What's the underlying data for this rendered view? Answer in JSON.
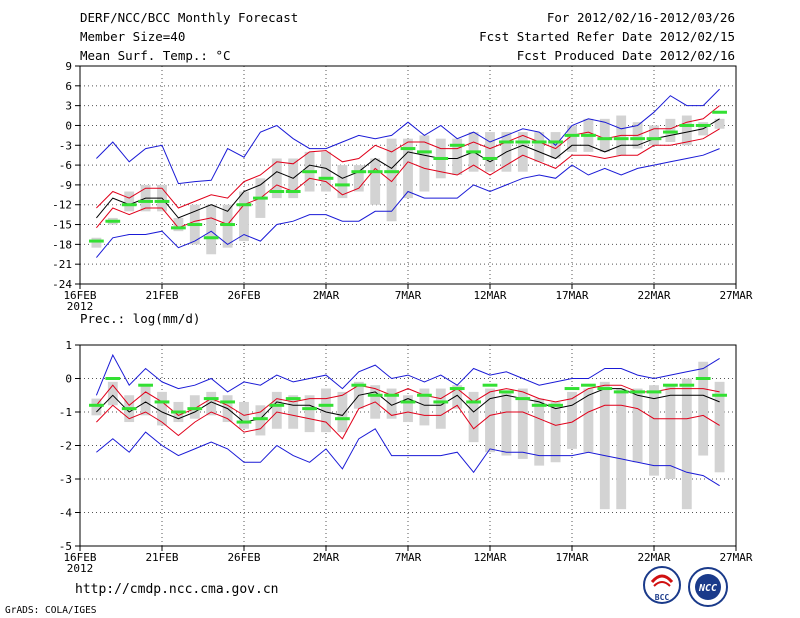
{
  "header": {
    "title": "DERF/NCC/BCC Monthly Forecast",
    "member_size": "Member Size=40",
    "variable": "Mean Surf. Temp.: °C",
    "period": "For 2012/02/16-2012/03/26",
    "refer_date": "Fcst Started Refer Date 2012/02/15",
    "produced_date": "Fcst Produced Date 2012/02/16"
  },
  "footer": {
    "url": "http://cmdp.ncc.cma.gov.cn",
    "grads": "GrADS: COLA/IGES",
    "logo_bcc": "BCC",
    "logo_ncc": "NCC"
  },
  "colors": {
    "box": "#d3d3d3",
    "mean": "#000000",
    "spread": "#e0001a",
    "extreme": "#1a1ad6",
    "median": "#33e033",
    "grid": "#555555"
  },
  "chart_data": [
    {
      "type": "line",
      "id": "temperature",
      "title": "Mean Surf. Temp.: °C",
      "ylabel": "°C",
      "ylim": [
        -24,
        9
      ],
      "yticks": [
        -24,
        -21,
        -18,
        -15,
        -12,
        -9,
        -6,
        -3,
        0,
        3,
        6,
        9
      ],
      "day_range": [
        0,
        40
      ],
      "xticks": [
        {
          "day": 0,
          "label": "16FEB",
          "sub": "2012"
        },
        {
          "day": 5,
          "label": "21FEB"
        },
        {
          "day": 10,
          "label": "26FEB"
        },
        {
          "day": 15,
          "label": "2MAR"
        },
        {
          "day": 20,
          "label": "7MAR"
        },
        {
          "day": 25,
          "label": "12MAR"
        },
        {
          "day": 30,
          "label": "17MAR"
        },
        {
          "day": 35,
          "label": "22MAR"
        },
        {
          "day": 40,
          "label": "27MAR"
        }
      ],
      "days": [
        1,
        2,
        3,
        4,
        5,
        6,
        7,
        8,
        9,
        10,
        11,
        12,
        13,
        14,
        15,
        16,
        17,
        18,
        19,
        20,
        21,
        22,
        23,
        24,
        25,
        26,
        27,
        28,
        29,
        30,
        31,
        32,
        33,
        34,
        35,
        36,
        37,
        38,
        39
      ],
      "series": [
        {
          "name": "max",
          "values": [
            -5,
            -2.5,
            -5.5,
            -3.5,
            -3,
            -8.8,
            -8.5,
            -8.3,
            -3.5,
            -4.8,
            -1,
            0,
            -2,
            -3.5,
            -3.5,
            -2.5,
            -1.5,
            -2,
            -1.5,
            0.5,
            -1.5,
            0,
            -2,
            -1,
            -2.5,
            -1.5,
            -0.5,
            -1,
            -3,
            0,
            1,
            0.5,
            -0.5,
            0,
            2,
            4.5,
            3,
            3,
            5.5
          ]
        },
        {
          "name": "upper",
          "values": [
            -12.5,
            -10,
            -11,
            -9.5,
            -9.5,
            -12.5,
            -11.5,
            -10.5,
            -11,
            -8.5,
            -7.5,
            -5.5,
            -5.8,
            -4,
            -3.8,
            -5.5,
            -5,
            -3,
            -4,
            -2.5,
            -2.5,
            -3.5,
            -3.5,
            -2.5,
            -3.5,
            -2.5,
            -1.5,
            -2.5,
            -3.5,
            -1.5,
            -1,
            -2,
            -1.5,
            -1.5,
            -0.5,
            -0.5,
            0.5,
            1,
            3
          ]
        },
        {
          "name": "mean",
          "values": [
            -14,
            -11,
            -12,
            -11,
            -11,
            -14,
            -13,
            -12,
            -13,
            -10,
            -9,
            -7,
            -8,
            -6,
            -6.5,
            -8,
            -7,
            -5,
            -6.5,
            -4,
            -4.5,
            -5,
            -5,
            -4,
            -5.5,
            -4,
            -3,
            -4,
            -5,
            -3,
            -3,
            -4,
            -3,
            -3,
            -2,
            -1.5,
            -1,
            -0.5,
            1
          ]
        },
        {
          "name": "lower",
          "values": [
            -15.5,
            -12.5,
            -13.5,
            -12.5,
            -12.5,
            -15.5,
            -14.5,
            -14,
            -15,
            -12,
            -11,
            -9,
            -10,
            -8,
            -8.5,
            -10.5,
            -9.5,
            -6.5,
            -8.5,
            -5.5,
            -6.5,
            -7,
            -7.5,
            -6,
            -7.5,
            -6,
            -4.5,
            -5.5,
            -6.5,
            -4.5,
            -4.5,
            -5,
            -4.5,
            -4.5,
            -3,
            -3,
            -2.5,
            -2,
            -0.5
          ]
        },
        {
          "name": "min",
          "values": [
            -20,
            -17,
            -16.5,
            -16.5,
            -16,
            -18.5,
            -17.5,
            -16,
            -18,
            -16.5,
            -17.5,
            -15,
            -14.5,
            -13.5,
            -13.5,
            -14.5,
            -14.5,
            -13,
            -13,
            -10,
            -11,
            -11,
            -11,
            -9,
            -10,
            -9,
            -8,
            -7.5,
            -8,
            -6,
            -7.5,
            -6.5,
            -7.5,
            -6.5,
            -6,
            -5.5,
            -5,
            -4.5,
            -3.5
          ]
        },
        {
          "name": "median",
          "values": [
            -17.5,
            -14.5,
            -12,
            -11.5,
            -11.5,
            -15.5,
            -15,
            -17,
            -15,
            -12,
            -11,
            -10,
            -10,
            -7,
            -8,
            -9,
            -7,
            -7,
            -7,
            -3.5,
            -4,
            -5,
            -3,
            -4,
            -5,
            -2.5,
            -2.5,
            -2.5,
            -2.5,
            -1.5,
            -1.5,
            -2,
            -2,
            -2,
            -2,
            -1,
            0,
            0,
            2
          ]
        },
        {
          "name": "box_top",
          "values": [
            -17,
            -14,
            -10,
            -9,
            -9,
            -14,
            -12,
            -12,
            -12,
            -10,
            -8,
            -5,
            -5,
            -4,
            -4,
            -6,
            -6,
            -5,
            -2,
            -2,
            -1.5,
            -2,
            -2,
            -1,
            -1,
            -1,
            -1,
            -1,
            -1,
            0,
            1,
            1,
            1.5,
            0.5,
            0,
            1,
            1.5,
            0.5,
            1
          ]
        },
        {
          "name": "box_bottom",
          "values": [
            -18.5,
            -15,
            -13,
            -13,
            -13,
            -16,
            -18,
            -19.5,
            -18.5,
            -17.5,
            -14,
            -11,
            -11,
            -10,
            -10,
            -11,
            -10,
            -12,
            -14.5,
            -11,
            -10,
            -8,
            -7.5,
            -7,
            -7,
            -7,
            -7,
            -5.5,
            -5,
            -4,
            -4,
            -4,
            -4.5,
            -3.5,
            -3,
            -2.5,
            -3,
            -1.5,
            -0.5
          ]
        }
      ]
    },
    {
      "type": "line",
      "id": "precipitation",
      "title": "Prec.: log(mm/d)",
      "ylabel": "log(mm/d)",
      "ylim": [
        -5,
        1
      ],
      "yticks": [
        -5,
        -4,
        -3,
        -2,
        -1,
        0,
        1
      ],
      "day_range": [
        0,
        40
      ],
      "xticks": [
        {
          "day": 0,
          "label": "16FEB",
          "sub": "2012"
        },
        {
          "day": 5,
          "label": "21FEB"
        },
        {
          "day": 10,
          "label": "26FEB"
        },
        {
          "day": 15,
          "label": "2MAR"
        },
        {
          "day": 20,
          "label": "7MAR"
        },
        {
          "day": 25,
          "label": "12MAR"
        },
        {
          "day": 30,
          "label": "17MAR"
        },
        {
          "day": 35,
          "label": "22MAR"
        },
        {
          "day": 40,
          "label": "27MAR"
        }
      ],
      "days": [
        1,
        2,
        3,
        4,
        5,
        6,
        7,
        8,
        9,
        10,
        11,
        12,
        13,
        14,
        15,
        16,
        17,
        18,
        19,
        20,
        21,
        22,
        23,
        24,
        25,
        26,
        27,
        28,
        29,
        30,
        31,
        32,
        33,
        34,
        35,
        36,
        37,
        38,
        39
      ],
      "series": [
        {
          "name": "max",
          "values": [
            -0.5,
            0.7,
            -0.2,
            0.3,
            -0.1,
            -0.3,
            -0.2,
            0,
            -0.4,
            -0.1,
            -0.2,
            0.1,
            -0.1,
            0,
            0.1,
            -0.3,
            0.2,
            0.4,
            0,
            0.1,
            -0.1,
            0.1,
            -0.2,
            0.3,
            0.1,
            0.2,
            0,
            -0.2,
            -0.1,
            0,
            0,
            0.3,
            0.3,
            0.1,
            0,
            0.1,
            0.2,
            0.3,
            0.6
          ]
        },
        {
          "name": "upper",
          "values": [
            -0.8,
            -0.2,
            -0.8,
            -0.4,
            -0.7,
            -1.1,
            -0.9,
            -0.6,
            -0.8,
            -1.1,
            -1,
            -0.6,
            -0.7,
            -0.6,
            -0.6,
            -0.5,
            -0.2,
            -0.3,
            -0.5,
            -0.3,
            -0.5,
            -0.6,
            -0.3,
            -0.7,
            -0.4,
            -0.3,
            -0.4,
            -0.6,
            -0.7,
            -0.6,
            -0.3,
            -0.2,
            -0.2,
            -0.4,
            -0.4,
            -0.3,
            -0.3,
            -0.3,
            -0.4
          ]
        },
        {
          "name": "mean",
          "values": [
            -1,
            -0.5,
            -1,
            -0.7,
            -1,
            -1.2,
            -1,
            -0.7,
            -0.9,
            -1.3,
            -1.2,
            -0.7,
            -0.8,
            -0.8,
            -1,
            -1.1,
            -0.5,
            -0.4,
            -0.8,
            -0.6,
            -0.8,
            -0.8,
            -0.5,
            -1,
            -0.6,
            -0.5,
            -0.6,
            -0.7,
            -0.9,
            -0.8,
            -0.5,
            -0.3,
            -0.3,
            -0.5,
            -0.6,
            -0.5,
            -0.5,
            -0.5,
            -0.7
          ]
        },
        {
          "name": "lower",
          "values": [
            -1.3,
            -0.8,
            -1.2,
            -1,
            -1.3,
            -1.7,
            -1.3,
            -1,
            -1.2,
            -1.6,
            -1.5,
            -1,
            -1.1,
            -1.2,
            -1.3,
            -1.8,
            -0.9,
            -0.7,
            -1.1,
            -1,
            -1.1,
            -1.1,
            -0.8,
            -1.5,
            -1.1,
            -1,
            -1,
            -1.2,
            -1.4,
            -1.3,
            -1,
            -0.8,
            -0.8,
            -0.9,
            -1.2,
            -1.2,
            -1.2,
            -1.1,
            -1.4
          ]
        },
        {
          "name": "min",
          "values": [
            -2.2,
            -1.8,
            -2.2,
            -1.6,
            -2,
            -2.3,
            -2.1,
            -1.9,
            -2.1,
            -2.5,
            -2.5,
            -2,
            -2.3,
            -2.5,
            -2.1,
            -2.7,
            -1.8,
            -1.5,
            -2.3,
            -2.3,
            -2.3,
            -2.3,
            -2.2,
            -2.8,
            -2.1,
            -2.2,
            -2.2,
            -2.3,
            -2.3,
            -2.3,
            -2.2,
            -2.3,
            -2.4,
            -2.5,
            -2.6,
            -2.6,
            -2.8,
            -2.9,
            -3.2
          ]
        },
        {
          "name": "median",
          "values": [
            -0.8,
            0,
            -0.9,
            -0.2,
            -0.7,
            -1,
            -0.9,
            -0.6,
            -0.7,
            -1.3,
            -1.2,
            -0.8,
            -0.6,
            -0.9,
            -0.8,
            -1.2,
            -0.2,
            -0.5,
            -0.5,
            -0.7,
            -0.5,
            -0.7,
            -0.3,
            -0.7,
            -0.2,
            -0.4,
            -0.6,
            -0.8,
            -0.8,
            -0.3,
            -0.2,
            -0.3,
            -0.4,
            -0.4,
            -0.4,
            -0.2,
            -0.2,
            0,
            -0.5
          ]
        },
        {
          "name": "box_top",
          "values": [
            -0.6,
            -0.1,
            -0.5,
            -0.2,
            -0.4,
            -0.7,
            -0.5,
            -0.4,
            -0.5,
            -0.7,
            -0.8,
            -0.4,
            -0.5,
            -0.5,
            -0.3,
            -0.4,
            -0.1,
            -0.2,
            -0.3,
            -0.5,
            -0.3,
            -0.3,
            -0.2,
            -0.4,
            -0.3,
            -0.4,
            -0.3,
            -0.6,
            -0.7,
            -0.4,
            -0.3,
            -0.1,
            -0.3,
            -0.3,
            -0.2,
            -0.2,
            0,
            0.5,
            -0.1
          ]
        },
        {
          "name": "box_bottom",
          "values": [
            -1.1,
            -0.8,
            -1.3,
            -1.1,
            -1.4,
            -1.3,
            -1.2,
            -1.1,
            -1.3,
            -1.5,
            -1.7,
            -1.5,
            -1.5,
            -1.6,
            -1.6,
            -1.6,
            -0.9,
            -1.2,
            -1.2,
            -1.3,
            -1.4,
            -1.5,
            -0.9,
            -1.9,
            -2.2,
            -2.3,
            -2.4,
            -2.6,
            -2.5,
            -2.1,
            -2.2,
            -3.9,
            -3.9,
            -2.5,
            -2.9,
            -3,
            -3.9,
            -2.3,
            -2.8
          ]
        }
      ]
    }
  ]
}
